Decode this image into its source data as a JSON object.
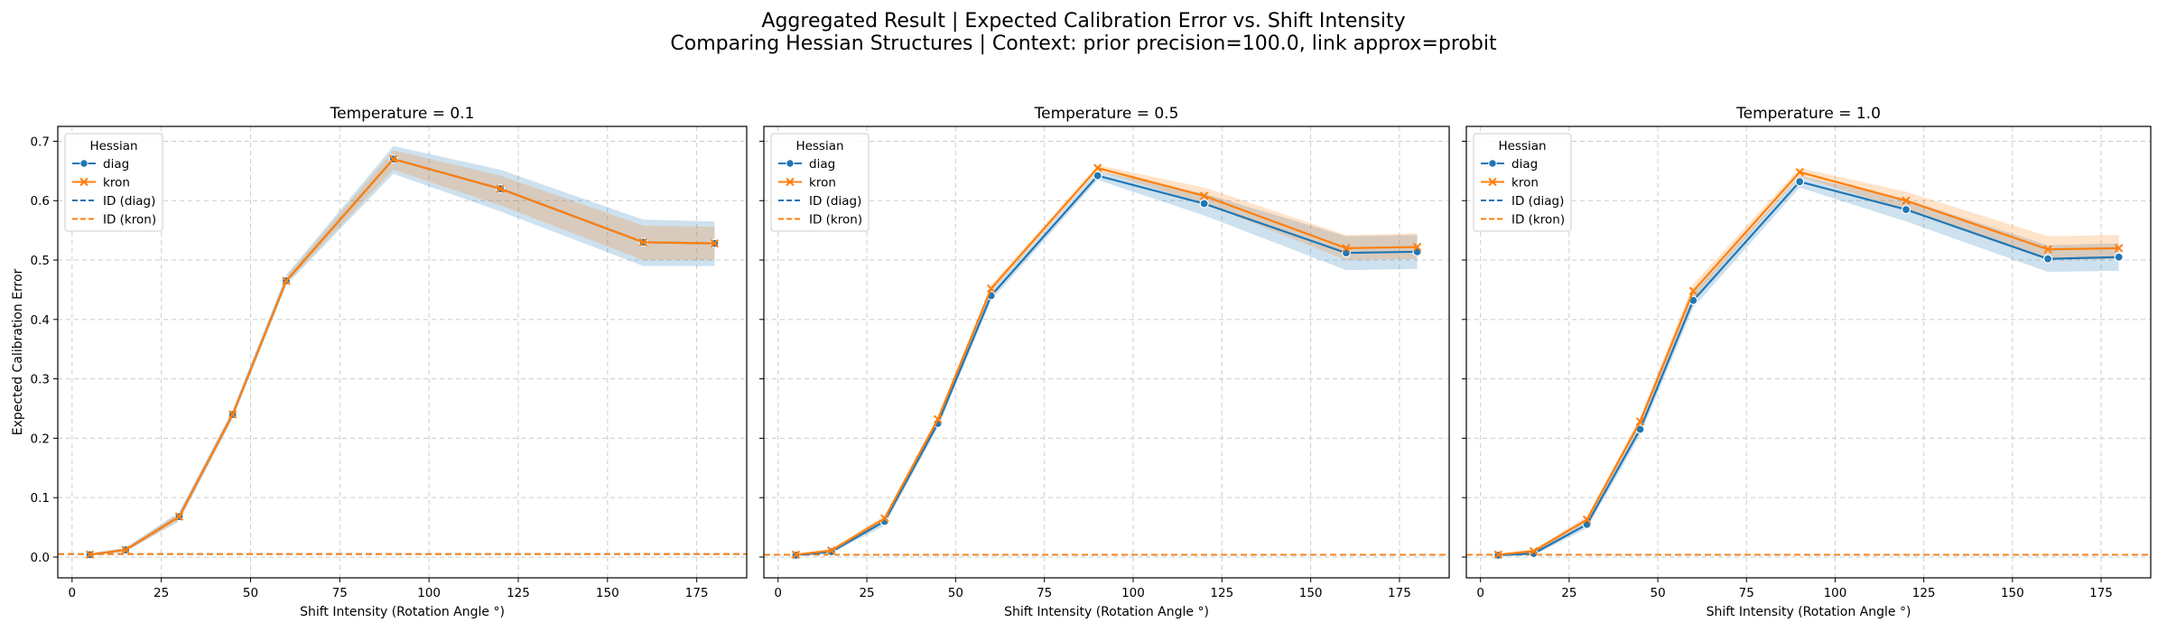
{
  "figure": {
    "title_line1": "Aggregated Result | Expected Calibration Error vs. Shift Intensity",
    "title_line2": "Comparing Hessian Structures | Context: prior precision=100.0, link approx=probit"
  },
  "colors": {
    "diag": "#1f77b4",
    "kron": "#ff7f0e"
  },
  "chart_data": [
    {
      "type": "line",
      "title": "Temperature = 0.1",
      "xlabel": "Shift Intensity (Rotation Angle °)",
      "ylabel": "Expected Calibration Error",
      "xlim": [
        -4,
        189
      ],
      "ylim": [
        -0.035,
        0.725
      ],
      "xticks": [
        0,
        25,
        50,
        75,
        100,
        125,
        150,
        175
      ],
      "yticks": [
        0.0,
        0.1,
        0.2,
        0.3,
        0.4,
        0.5,
        0.6,
        0.7
      ],
      "grid": true,
      "legend": {
        "title": "Hessian",
        "position": "upper left",
        "entries": [
          "diag",
          "kron",
          "ID (diag)",
          "ID (kron)"
        ]
      },
      "x": [
        5,
        15,
        30,
        45,
        60,
        90,
        120,
        160,
        180
      ],
      "series": [
        {
          "name": "diag",
          "values": [
            0.004,
            0.012,
            0.068,
            0.24,
            0.465,
            0.67,
            0.62,
            0.53,
            0.528
          ],
          "ci_low": [
            0.003,
            0.009,
            0.06,
            0.233,
            0.458,
            0.645,
            0.582,
            0.49,
            0.49
          ],
          "ci_high": [
            0.006,
            0.016,
            0.076,
            0.248,
            0.475,
            0.692,
            0.652,
            0.568,
            0.565
          ]
        },
        {
          "name": "kron",
          "values": [
            0.004,
            0.012,
            0.068,
            0.24,
            0.465,
            0.67,
            0.62,
            0.53,
            0.528
          ],
          "ci_low": [
            0.003,
            0.009,
            0.062,
            0.235,
            0.46,
            0.652,
            0.592,
            0.5,
            0.5
          ],
          "ci_high": [
            0.006,
            0.015,
            0.074,
            0.246,
            0.472,
            0.685,
            0.642,
            0.558,
            0.556
          ]
        }
      ],
      "id_lines": [
        {
          "name": "ID (diag)",
          "value": 0.005
        },
        {
          "name": "ID (kron)",
          "value": 0.005
        }
      ]
    },
    {
      "type": "line",
      "title": "Temperature = 0.5",
      "xlabel": "Shift Intensity (Rotation Angle °)",
      "ylabel": "",
      "xlim": [
        -4,
        189
      ],
      "ylim": [
        -0.035,
        0.725
      ],
      "xticks": [
        0,
        25,
        50,
        75,
        100,
        125,
        150,
        175
      ],
      "yticks": [
        0.0,
        0.1,
        0.2,
        0.3,
        0.4,
        0.5,
        0.6,
        0.7
      ],
      "grid": true,
      "legend": {
        "title": "Hessian",
        "position": "upper left",
        "entries": [
          "diag",
          "kron",
          "ID (diag)",
          "ID (kron)"
        ]
      },
      "x": [
        5,
        15,
        30,
        45,
        60,
        90,
        120,
        160,
        180
      ],
      "series": [
        {
          "name": "diag",
          "values": [
            0.003,
            0.009,
            0.06,
            0.225,
            0.44,
            0.642,
            0.595,
            0.512,
            0.514
          ],
          "ci_low": [
            0.002,
            0.006,
            0.053,
            0.218,
            0.432,
            0.635,
            0.575,
            0.483,
            0.485
          ],
          "ci_high": [
            0.005,
            0.012,
            0.067,
            0.232,
            0.448,
            0.65,
            0.612,
            0.54,
            0.542
          ]
        },
        {
          "name": "kron",
          "values": [
            0.004,
            0.011,
            0.065,
            0.232,
            0.452,
            0.655,
            0.608,
            0.52,
            0.522
          ],
          "ci_low": [
            0.003,
            0.008,
            0.06,
            0.227,
            0.446,
            0.65,
            0.595,
            0.5,
            0.502
          ],
          "ci_high": [
            0.005,
            0.014,
            0.07,
            0.237,
            0.458,
            0.66,
            0.622,
            0.542,
            0.545
          ]
        }
      ],
      "id_lines": [
        {
          "name": "ID (diag)",
          "value": 0.004
        },
        {
          "name": "ID (kron)",
          "value": 0.004
        }
      ]
    },
    {
      "type": "line",
      "title": "Temperature = 1.0",
      "xlabel": "Shift Intensity (Rotation Angle °)",
      "ylabel": "",
      "xlim": [
        -4,
        189
      ],
      "ylim": [
        -0.035,
        0.725
      ],
      "xticks": [
        0,
        25,
        50,
        75,
        100,
        125,
        150,
        175
      ],
      "yticks": [
        0.0,
        0.1,
        0.2,
        0.3,
        0.4,
        0.5,
        0.6,
        0.7
      ],
      "grid": true,
      "legend": {
        "title": "Hessian",
        "position": "upper left",
        "entries": [
          "diag",
          "kron",
          "ID (diag)",
          "ID (kron)"
        ]
      },
      "x": [
        5,
        15,
        30,
        45,
        60,
        90,
        120,
        160,
        180
      ],
      "series": [
        {
          "name": "diag",
          "values": [
            0.003,
            0.006,
            0.055,
            0.215,
            0.432,
            0.632,
            0.585,
            0.502,
            0.505
          ],
          "ci_low": [
            0.002,
            0.003,
            0.048,
            0.205,
            0.42,
            0.622,
            0.565,
            0.48,
            0.482
          ],
          "ci_high": [
            0.005,
            0.01,
            0.062,
            0.225,
            0.445,
            0.642,
            0.602,
            0.525,
            0.528
          ]
        },
        {
          "name": "kron",
          "values": [
            0.004,
            0.01,
            0.063,
            0.228,
            0.448,
            0.648,
            0.6,
            0.518,
            0.52
          ],
          "ci_low": [
            0.003,
            0.007,
            0.058,
            0.22,
            0.436,
            0.64,
            0.585,
            0.5,
            0.502
          ],
          "ci_high": [
            0.005,
            0.013,
            0.068,
            0.236,
            0.46,
            0.655,
            0.615,
            0.54,
            0.542
          ]
        }
      ],
      "id_lines": [
        {
          "name": "ID (diag)",
          "value": 0.004
        },
        {
          "name": "ID (kron)",
          "value": 0.004
        }
      ]
    }
  ]
}
